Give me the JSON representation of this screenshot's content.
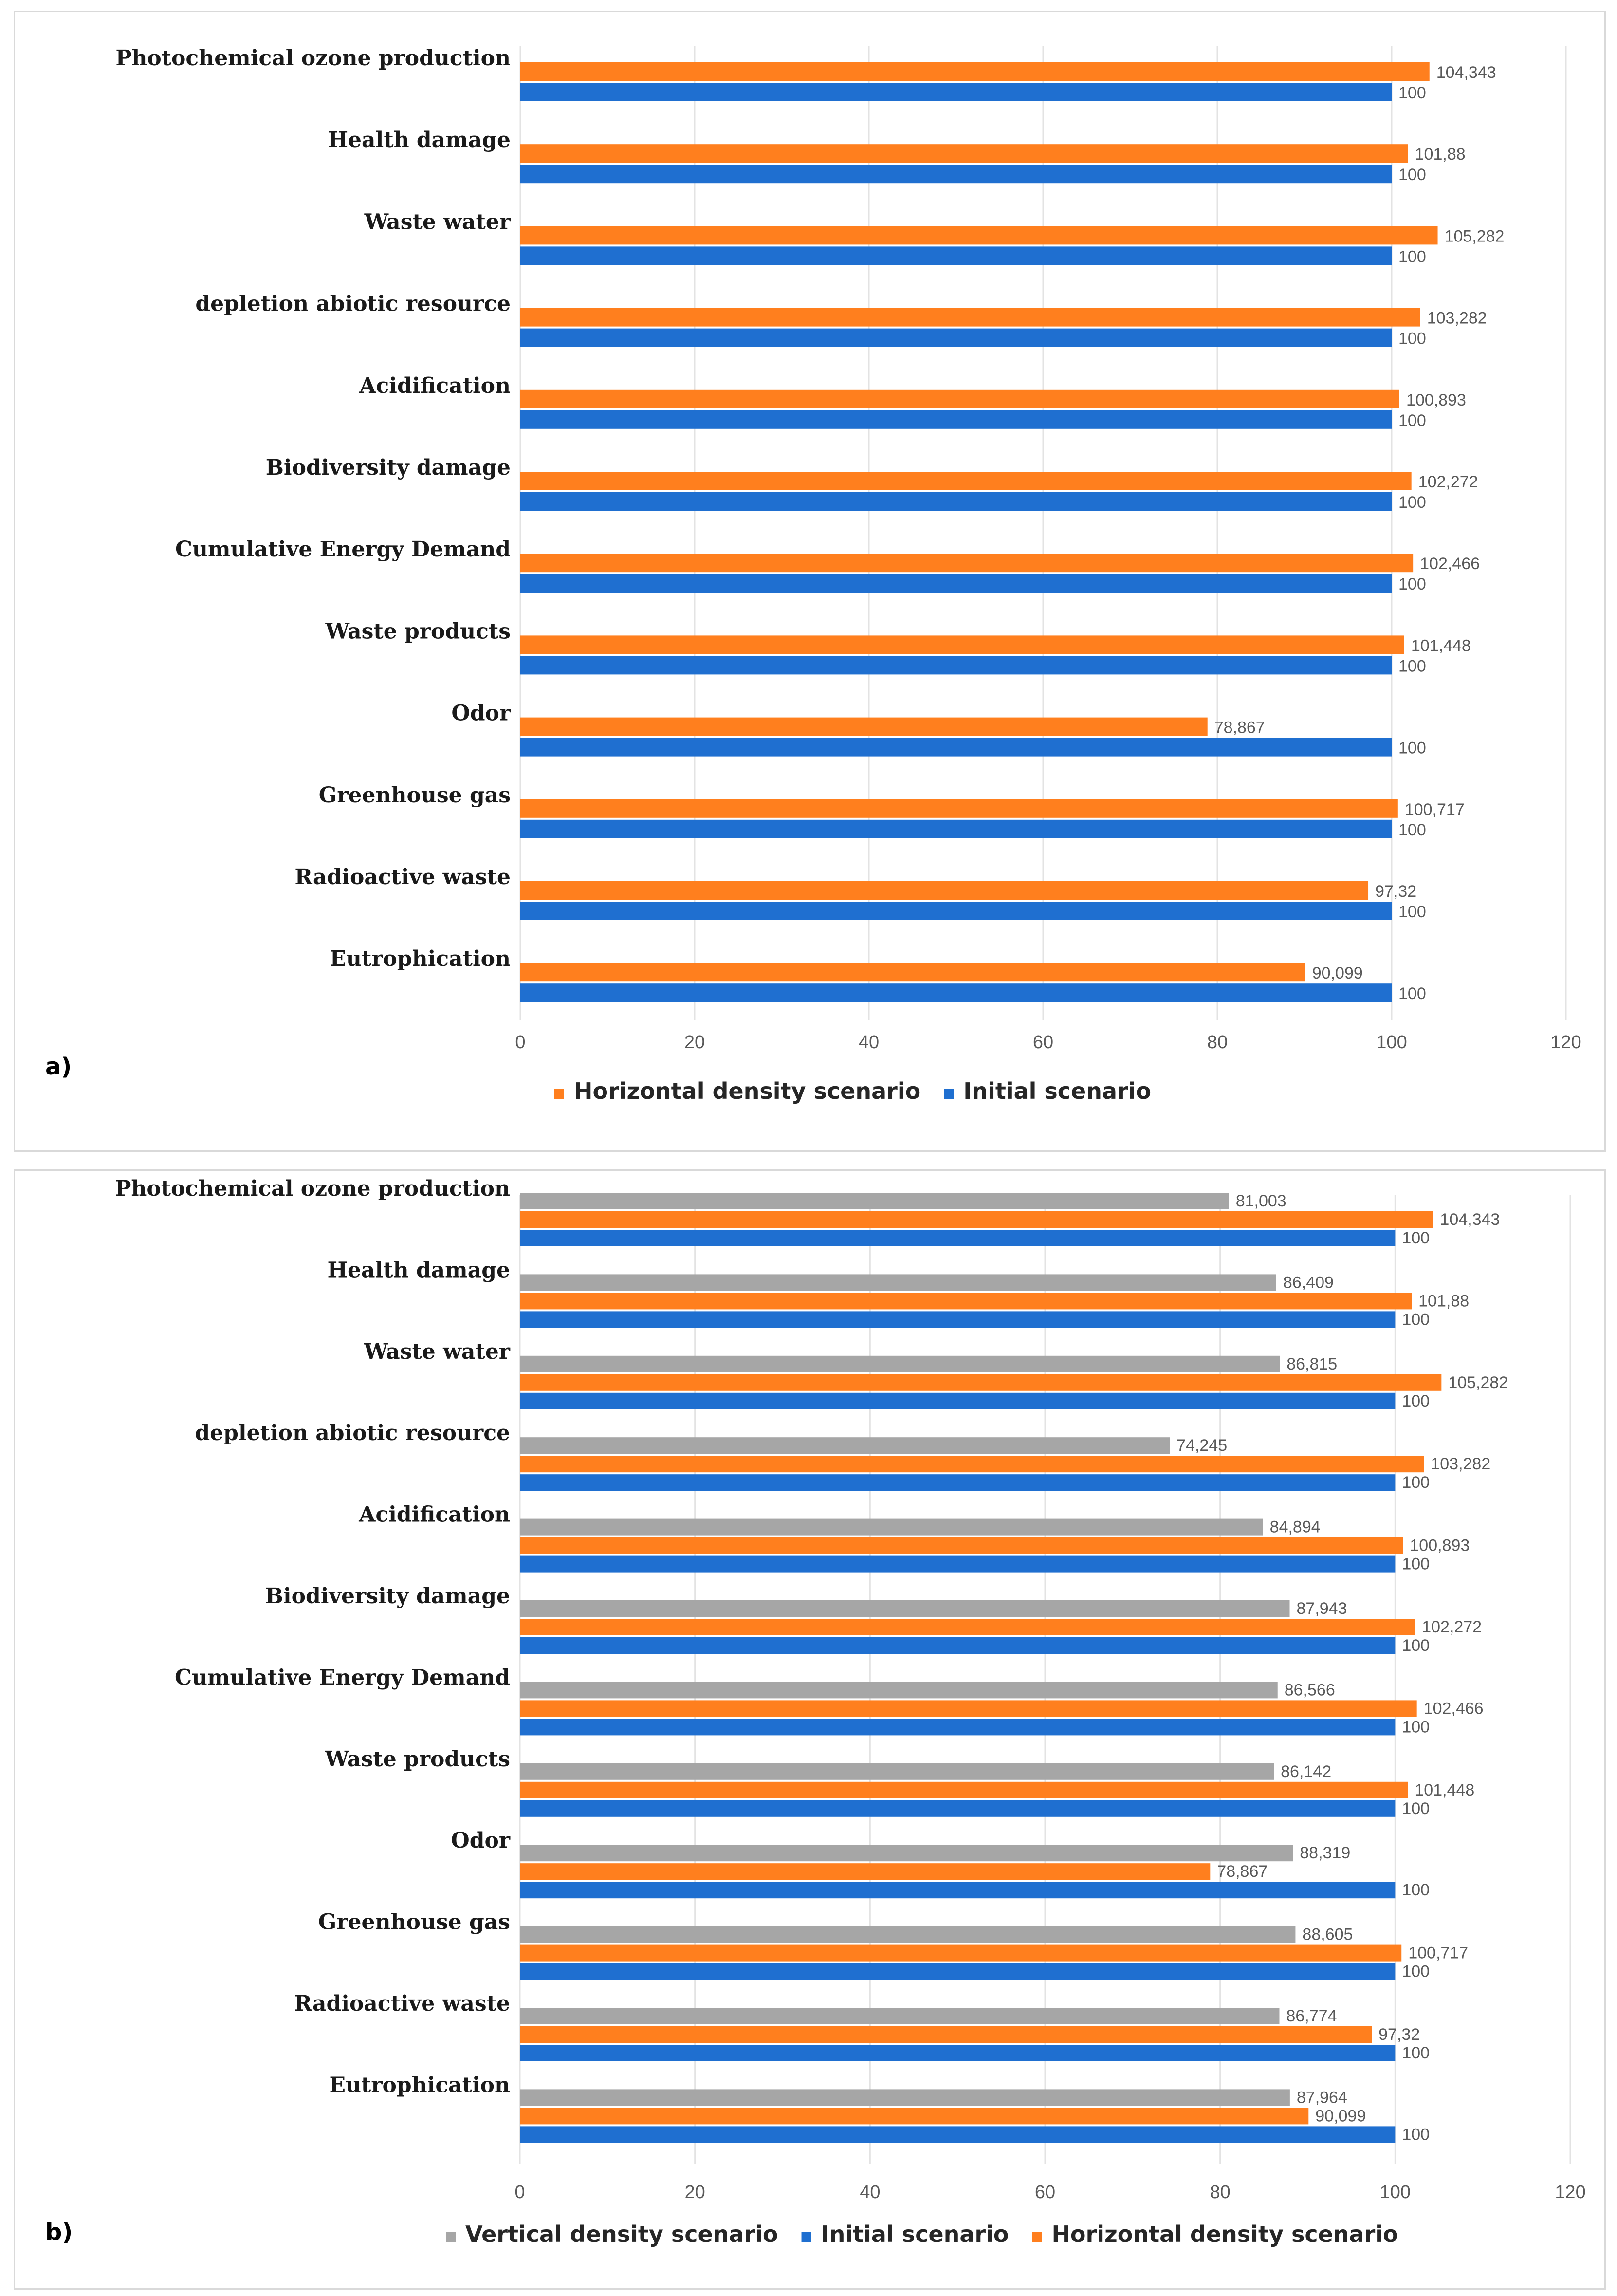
{
  "colors": {
    "initial": "#1f6fd0",
    "horizontal": "#ff7f1e",
    "vertical": "#a6a6a6"
  },
  "chart_data": [
    {
      "type": "bar",
      "orientation": "horizontal",
      "panel_label": "a)",
      "categories": [
        "Photochemical ozone production",
        "Health damage",
        "Waste water",
        "depletion abiotic resource",
        "Acidification",
        "Biodiversity damage",
        "Cumulative Energy Demand",
        "Waste products",
        "Odor",
        "Greenhouse gas",
        "Radioactive waste",
        "Eutrophication"
      ],
      "series": [
        {
          "name": "Horizontal density scenario",
          "color_key": "horizontal",
          "values": [
            104.343,
            101.88,
            105.282,
            103.282,
            100.893,
            102.272,
            102.466,
            101.448,
            78.867,
            100.717,
            97.32,
            90.099
          ],
          "labels": [
            "104,343",
            "101,88",
            "105,282",
            "103,282",
            "100,893",
            "102,272",
            "102,466",
            "101,448",
            "78,867",
            "100,717",
            "97,32",
            "90,099"
          ]
        },
        {
          "name": "Initial scenario",
          "color_key": "initial",
          "values": [
            100,
            100,
            100,
            100,
            100,
            100,
            100,
            100,
            100,
            100,
            100,
            100
          ],
          "labels": [
            "100",
            "100",
            "100",
            "100",
            "100",
            "100",
            "100",
            "100",
            "100",
            "100",
            "100",
            "100"
          ]
        }
      ],
      "legend": [
        {
          "name": "Horizontal density scenario",
          "color_key": "horizontal"
        },
        {
          "name": "Initial scenario",
          "color_key": "initial"
        }
      ],
      "xlim": [
        0,
        120
      ],
      "xticks": [
        "0",
        "20",
        "40",
        "60",
        "80",
        "100",
        "120"
      ],
      "grid": true,
      "legend_position": "bottom"
    },
    {
      "type": "bar",
      "orientation": "horizontal",
      "panel_label": "b)",
      "categories": [
        "Photochemical ozone production",
        "Health damage",
        "Waste water",
        "depletion abiotic resource",
        "Acidification",
        "Biodiversity damage",
        "Cumulative Energy Demand",
        "Waste products",
        "Odor",
        "Greenhouse gas",
        "Radioactive waste",
        "Eutrophication"
      ],
      "series": [
        {
          "name": "Vertical density scenario",
          "color_key": "vertical",
          "values": [
            81.003,
            86.409,
            86.815,
            74.245,
            84.894,
            87.943,
            86.566,
            86.142,
            88.319,
            88.605,
            86.774,
            87.964
          ],
          "labels": [
            "81,003",
            "86,409",
            "86,815",
            "74,245",
            "84,894",
            "87,943",
            "86,566",
            "86,142",
            "88,319",
            "88,605",
            "86,774",
            "87,964"
          ]
        },
        {
          "name": "Horizontal density scenario",
          "color_key": "horizontal",
          "values": [
            104.343,
            101.88,
            105.282,
            103.282,
            100.893,
            102.272,
            102.466,
            101.448,
            78.867,
            100.717,
            97.32,
            90.099
          ],
          "labels": [
            "104,343",
            "101,88",
            "105,282",
            "103,282",
            "100,893",
            "102,272",
            "102,466",
            "101,448",
            "78,867",
            "100,717",
            "97,32",
            "90,099"
          ]
        },
        {
          "name": "Initial scenario",
          "color_key": "initial",
          "values": [
            100,
            100,
            100,
            100,
            100,
            100,
            100,
            100,
            100,
            100,
            100,
            100
          ],
          "labels": [
            "100",
            "100",
            "100",
            "100",
            "100",
            "100",
            "100",
            "100",
            "100",
            "100",
            "100",
            "100"
          ]
        }
      ],
      "legend": [
        {
          "name": "Vertical density scenario",
          "color_key": "vertical"
        },
        {
          "name": "Initial scenario",
          "color_key": "initial"
        },
        {
          "name": "Horizontal density scenario",
          "color_key": "horizontal"
        }
      ],
      "xlim": [
        0,
        120
      ],
      "xticks": [
        "0",
        "20",
        "40",
        "60",
        "80",
        "100",
        "120"
      ],
      "grid": true,
      "legend_position": "bottom"
    }
  ]
}
